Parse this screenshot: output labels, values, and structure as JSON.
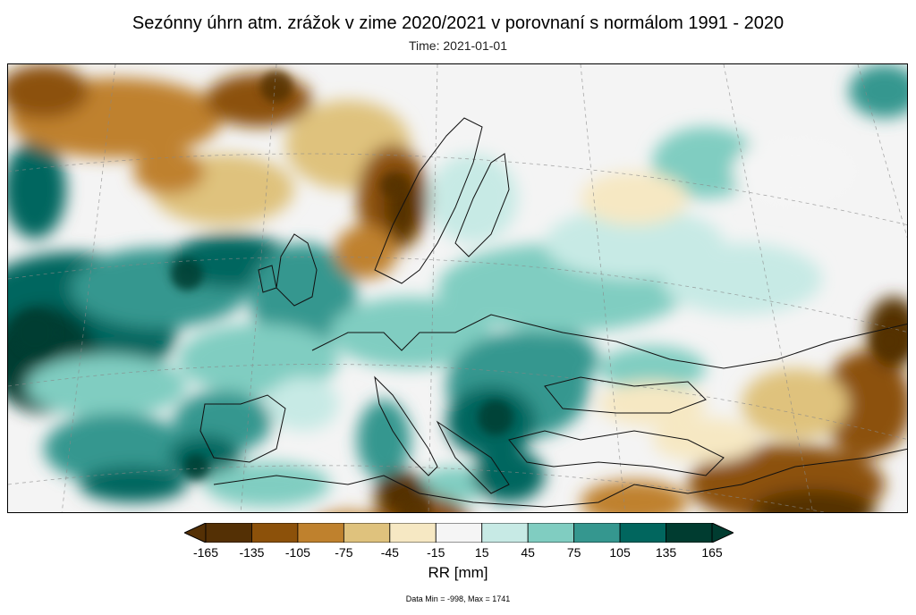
{
  "header": {
    "title": "Sezónny úhrn atm. zrážok v zime 2020/2021 v porovnaní s normálom 1991 - 2020",
    "time_label": "Time: 2021-01-01"
  },
  "colorbar": {
    "label": "RR [mm]",
    "ticks": [
      "-165",
      "-135",
      "-105",
      "-75",
      "-45",
      "-15",
      "15",
      "45",
      "75",
      "105",
      "135",
      "165"
    ],
    "colors": [
      "#543005",
      "#8c510a",
      "#bf812d",
      "#dfc27d",
      "#f6e8c3",
      "#f5f5f5",
      "#c7eae5",
      "#80cdc1",
      "#35978f",
      "#01665e",
      "#003c30"
    ],
    "extend_low_color": "#543005",
    "extend_high_color": "#003c30"
  },
  "footer": {
    "data_stats": "Data Min = -998, Max = 1741"
  }
}
